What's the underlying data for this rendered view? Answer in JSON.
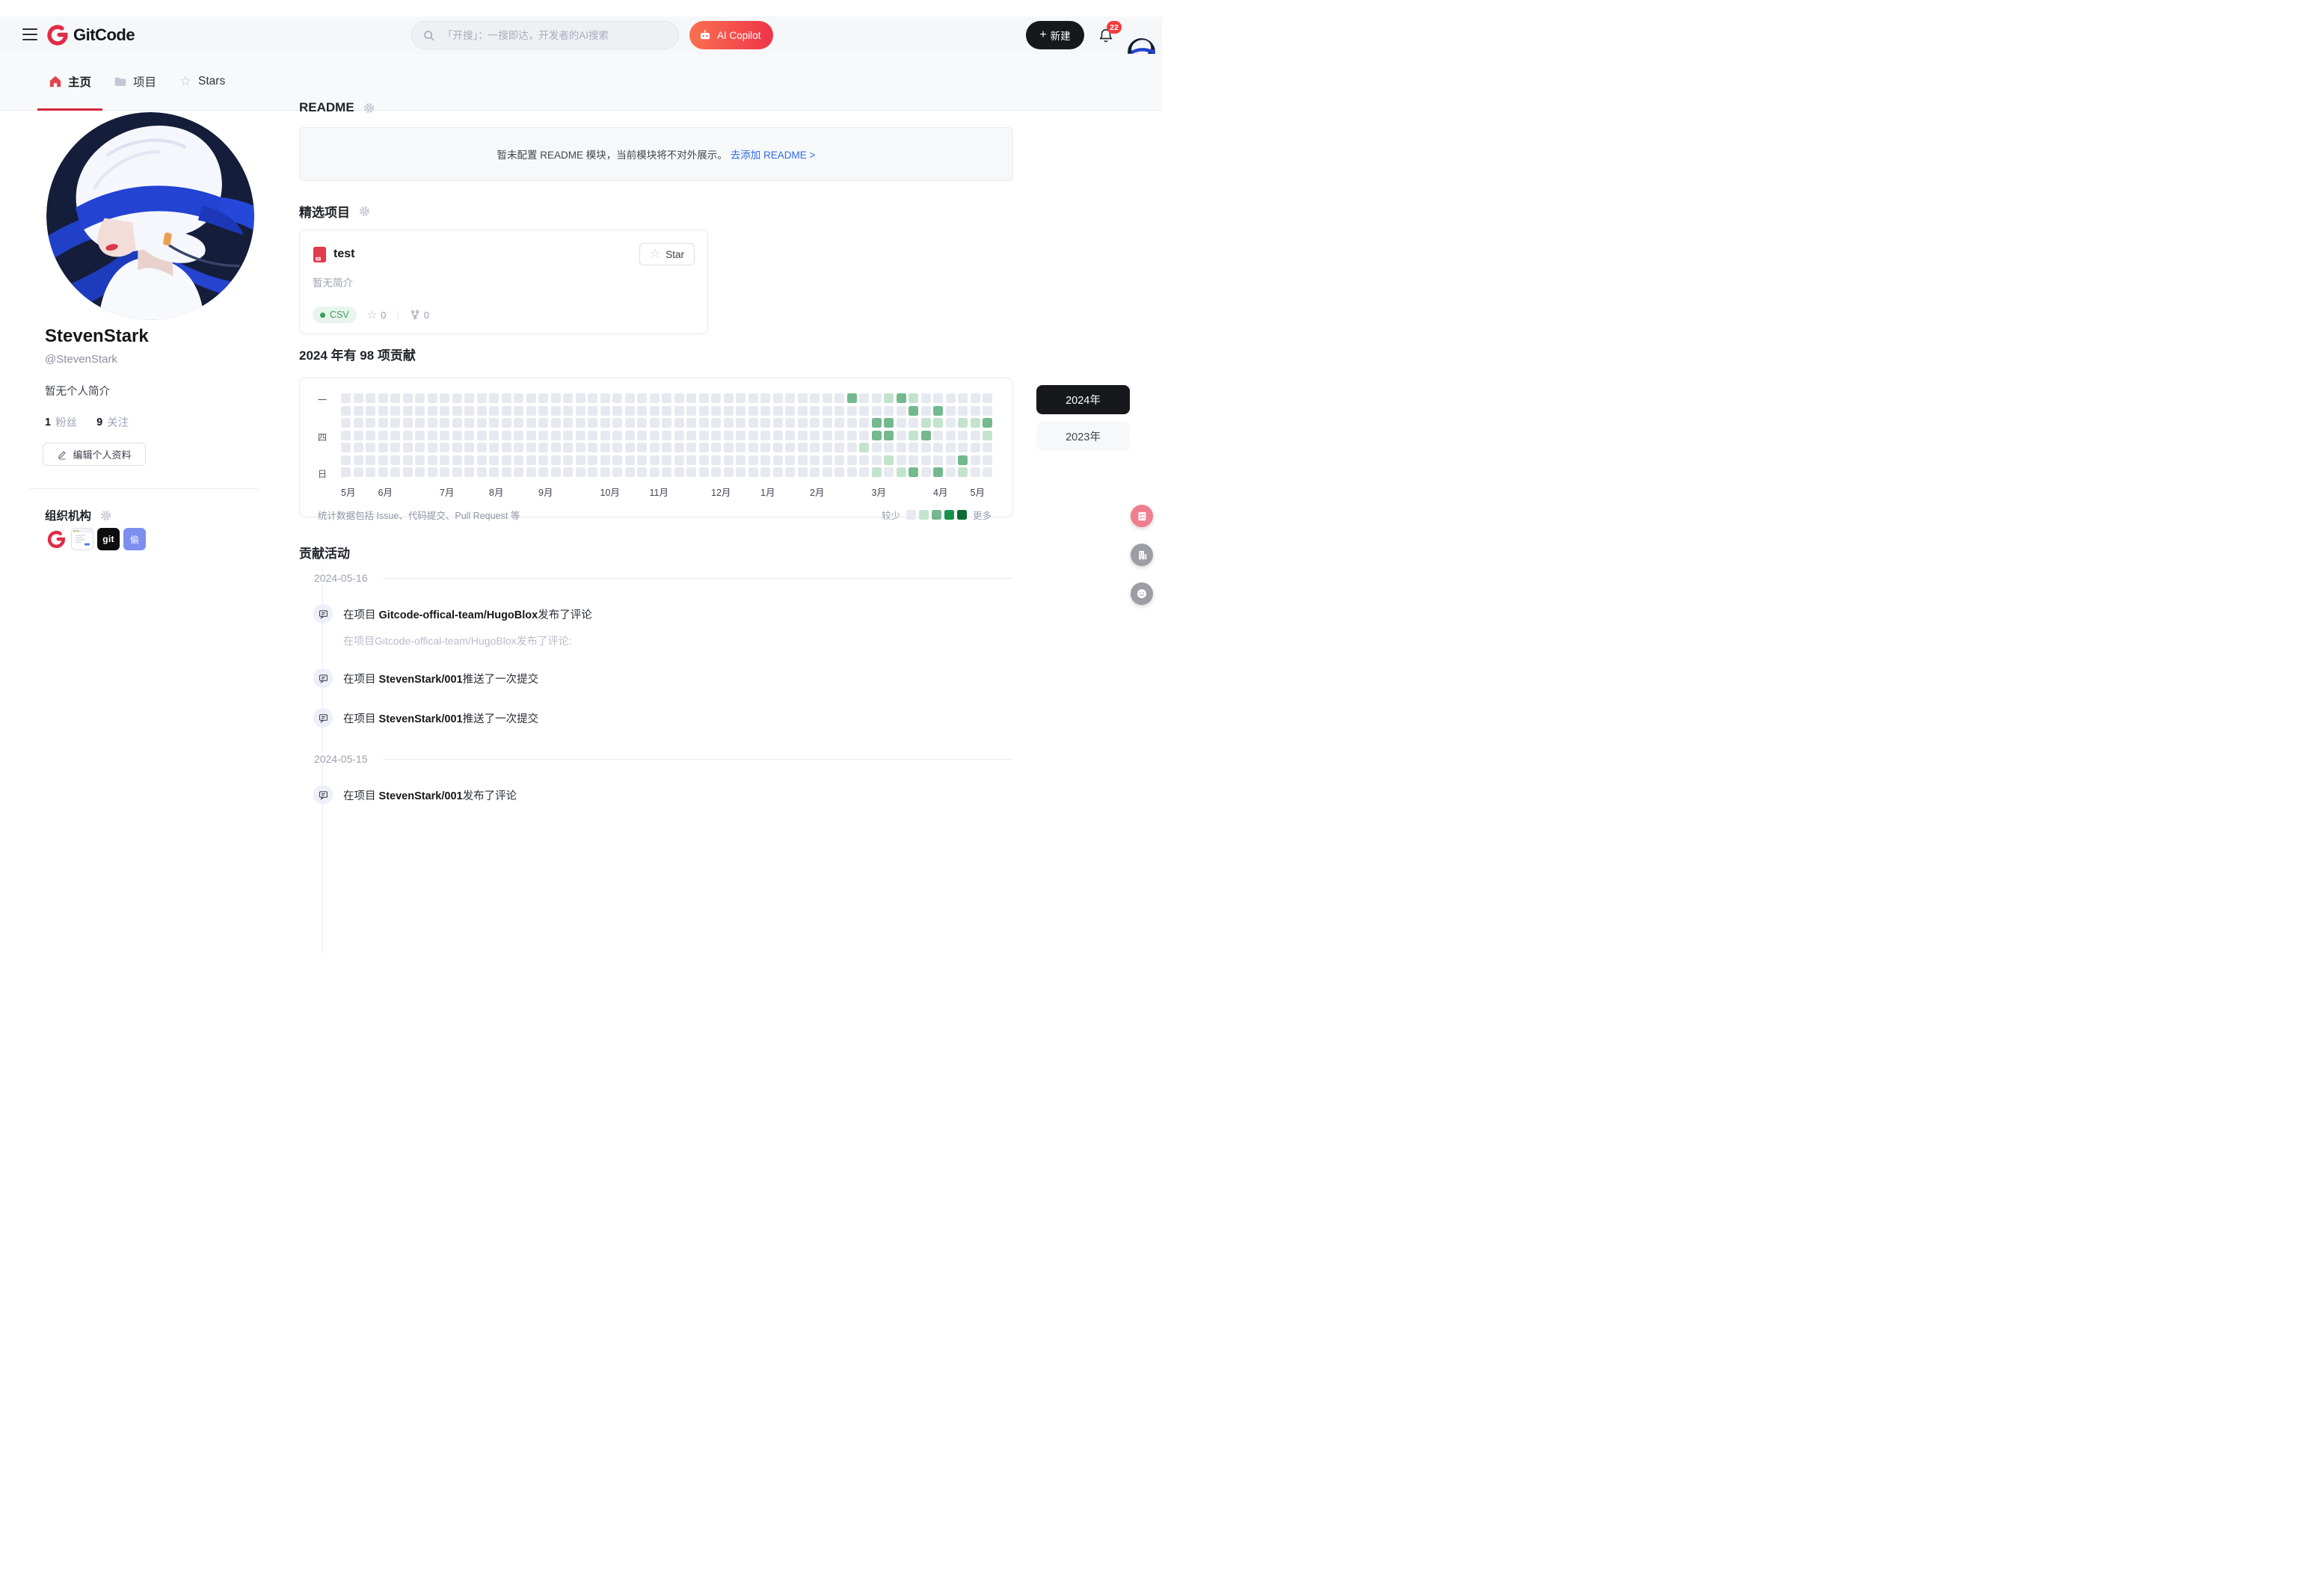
{
  "header": {
    "logo_text": "GitCode",
    "search": {
      "placeholder": "「开搜」：一搜即达，开发者的AI搜索"
    },
    "ai_copilot_label": "AI Copilot",
    "new_button_label": "新建",
    "notification_count": "22"
  },
  "tabs": [
    {
      "label": "主页",
      "icon": "home",
      "active": true
    },
    {
      "label": "项目",
      "icon": "folder",
      "active": false
    },
    {
      "label": "Stars",
      "icon": "star",
      "active": false
    }
  ],
  "profile": {
    "name": "StevenStark",
    "username": "@StevenStark",
    "bio": "暂无个人简介",
    "followers": "1",
    "followers_label": "粉丝",
    "following": "9",
    "following_label": "关注",
    "edit_button": "编辑个人资料",
    "orgs_title": "组织机构",
    "orgs": [
      {
        "name": "gitcode-org",
        "type": "gitcodeG"
      },
      {
        "name": "form-org",
        "type": "formwin"
      },
      {
        "name": "git-org",
        "type": "text",
        "text": "git",
        "bg": "#0d0d0f"
      },
      {
        "name": "tou-org",
        "type": "text",
        "text": "偷",
        "bg": "#7d8ef1"
      }
    ]
  },
  "readme": {
    "title": "README",
    "notice": "暂未配置 README 模块，当前模块将不对外展示。",
    "link": "去添加 README >"
  },
  "featured": {
    "title": "精选项目",
    "repo": {
      "name": "test",
      "star_button": "Star",
      "desc": "暂无简介",
      "lang": "CSV",
      "stars": "0",
      "forks": "0"
    }
  },
  "contributions": {
    "title": "2024 年有 98 项贡献",
    "row_labels": {
      "0": "一",
      "3": "四",
      "6": "日"
    },
    "months": [
      "5月",
      "6月",
      "7月",
      "8月",
      "9月",
      "10月",
      "11月",
      "12月",
      "1月",
      "2月",
      "3月",
      "4月",
      "5月"
    ],
    "month_cols": [
      0,
      3,
      8,
      12,
      16,
      21,
      25,
      30,
      34,
      38,
      43,
      48,
      51
    ],
    "cols": 53,
    "colors": [
      "#e7e9f1",
      "#c3e3cd",
      "#74b98e",
      "#18924a",
      "#0e6b35"
    ],
    "cells": [
      {
        "r": 0,
        "c": 41,
        "l": 2
      },
      {
        "r": 0,
        "c": 44,
        "l": 1
      },
      {
        "r": 0,
        "c": 45,
        "l": 2
      },
      {
        "r": 0,
        "c": 46,
        "l": 1
      },
      {
        "r": 1,
        "c": 46,
        "l": 2
      },
      {
        "r": 1,
        "c": 48,
        "l": 2
      },
      {
        "r": 2,
        "c": 43,
        "l": 2
      },
      {
        "r": 2,
        "c": 44,
        "l": 2
      },
      {
        "r": 2,
        "c": 47,
        "l": 1
      },
      {
        "r": 2,
        "c": 48,
        "l": 1
      },
      {
        "r": 2,
        "c": 50,
        "l": 1
      },
      {
        "r": 2,
        "c": 51,
        "l": 1
      },
      {
        "r": 2,
        "c": 52,
        "l": 2
      },
      {
        "r": 3,
        "c": 43,
        "l": 2
      },
      {
        "r": 3,
        "c": 44,
        "l": 2
      },
      {
        "r": 3,
        "c": 46,
        "l": 1
      },
      {
        "r": 3,
        "c": 47,
        "l": 2
      },
      {
        "r": 3,
        "c": 52,
        "l": 1
      },
      {
        "r": 4,
        "c": 42,
        "l": 1
      },
      {
        "r": 5,
        "c": 44,
        "l": 1
      },
      {
        "r": 5,
        "c": 50,
        "l": 2
      },
      {
        "r": 6,
        "c": 43,
        "l": 1
      },
      {
        "r": 6,
        "c": 45,
        "l": 1
      },
      {
        "r": 6,
        "c": 46,
        "l": 2
      },
      {
        "r": 6,
        "c": 48,
        "l": 2
      },
      {
        "r": 6,
        "c": 50,
        "l": 1
      }
    ],
    "footer": "统计数据包括 Issue、代码提交、Pull Request 等",
    "legend_less": "较少",
    "legend_more": "更多",
    "years": [
      {
        "label": "2024年",
        "active": true
      },
      {
        "label": "2023年",
        "active": false
      }
    ]
  },
  "activity": {
    "title": "贡献活动",
    "groups": [
      {
        "date": "2024-05-16",
        "events": [
          {
            "prefix": "在项目 ",
            "repo": "Gitcode-offical-team/HugoBlox",
            "suffix": "发布了评论",
            "quote": "在项目Gitcode-offical-team/HugoBlox发布了评论:"
          },
          {
            "prefix": "在项目 ",
            "repo": "StevenStark/001",
            "suffix": "推送了一次提交"
          },
          {
            "prefix": "在项目 ",
            "repo": "StevenStark/001",
            "suffix": "推送了一次提交"
          }
        ]
      },
      {
        "date": "2024-05-15",
        "events": [
          {
            "prefix": "在项目 ",
            "repo": "StevenStark/001",
            "suffix": "发布了评论"
          }
        ]
      }
    ]
  },
  "floating_buttons": [
    {
      "name": "survey-button",
      "icon": "checklist",
      "color": "#ef7e8e"
    },
    {
      "name": "organization-button",
      "icon": "building",
      "color": "#9d9da5"
    },
    {
      "name": "feedback-button",
      "icon": "smiley",
      "color": "#9d9da5"
    }
  ]
}
